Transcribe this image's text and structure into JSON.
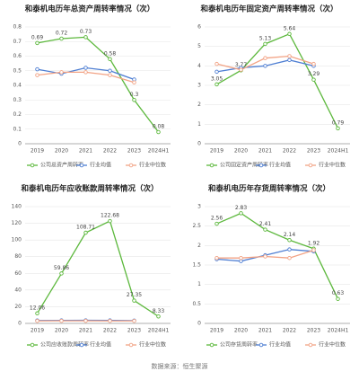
{
  "chart_data": [
    {
      "type": "line",
      "title": "和泰机电历年总资产周转率情况（次）",
      "x": [
        "2019",
        "2020",
        "2021",
        "2022",
        "2023",
        "2024H1"
      ],
      "ylim": [
        0,
        0.8
      ],
      "yticks": [
        0,
        0.1,
        0.2,
        0.3,
        0.4,
        0.5,
        0.6,
        0.7,
        0.8
      ],
      "grid": true,
      "legend": "bottom",
      "series": [
        {
          "name": "公司总资产周转率",
          "color": "#5cb83c",
          "values": [
            0.69,
            0.72,
            0.73,
            0.58,
            0.3,
            0.08
          ],
          "labels": true
        },
        {
          "name": "行业均值",
          "color": "#4f7fd3",
          "values": [
            0.51,
            0.48,
            0.52,
            0.5,
            0.44,
            null
          ]
        },
        {
          "name": "行业中位数",
          "color": "#f2a385",
          "values": [
            0.47,
            0.49,
            0.49,
            0.47,
            0.42,
            null
          ]
        }
      ]
    },
    {
      "type": "line",
      "title": "和泰机电历年固定资产周转率情况（次）",
      "x": [
        "2019",
        "2020",
        "2021",
        "2022",
        "2023",
        "2024H1"
      ],
      "ylim": [
        0,
        6
      ],
      "yticks": [
        0,
        1,
        2,
        3,
        4,
        5,
        6
      ],
      "grid": true,
      "legend": "bottom",
      "series": [
        {
          "name": "公司固定资产周转率",
          "color": "#5cb83c",
          "values": [
            3.05,
            3.77,
            5.13,
            5.64,
            3.29,
            0.79
          ],
          "labels": true
        },
        {
          "name": "行业均值",
          "color": "#4f7fd3",
          "values": [
            3.7,
            3.9,
            4.0,
            4.3,
            4.0,
            null
          ]
        },
        {
          "name": "行业中位数",
          "color": "#f2a385",
          "values": [
            4.1,
            3.8,
            4.4,
            4.5,
            4.1,
            null
          ]
        }
      ]
    },
    {
      "type": "line",
      "title": "和泰机电历年应收账款周转率情况（次）",
      "x": [
        "2019",
        "2020",
        "2021",
        "2022",
        "2023",
        "2024H1"
      ],
      "ylim": [
        0,
        140
      ],
      "yticks": [
        0,
        20,
        40,
        60,
        80,
        100,
        120,
        140
      ],
      "grid": true,
      "legend": "bottom",
      "series": [
        {
          "name": "公司应收账款周转率",
          "color": "#5cb83c",
          "values": [
            12.06,
            59.86,
            108.71,
            122.68,
            27.35,
            8.33
          ],
          "labels": true
        },
        {
          "name": "行业均值",
          "color": "#4f7fd3",
          "values": [
            3.5,
            3.6,
            3.7,
            3.6,
            3.4,
            null
          ]
        },
        {
          "name": "行业中位数",
          "color": "#f2a385",
          "values": [
            3.0,
            3.1,
            3.1,
            3.0,
            3.0,
            null
          ]
        }
      ]
    },
    {
      "type": "line",
      "title": "和泰机电历年存货周转率情况（次）",
      "x": [
        "2019",
        "2020",
        "2021",
        "2022",
        "2023",
        "2024H1"
      ],
      "ylim": [
        0,
        3
      ],
      "yticks": [
        0,
        0.5,
        1,
        1.5,
        2,
        2.5,
        3
      ],
      "grid": true,
      "legend": "bottom",
      "series": [
        {
          "name": "公司存货周转率",
          "color": "#5cb83c",
          "values": [
            2.56,
            2.83,
            2.41,
            2.14,
            1.92,
            0.63
          ],
          "labels": true
        },
        {
          "name": "行业均值",
          "color": "#4f7fd3",
          "values": [
            1.65,
            1.6,
            1.75,
            1.9,
            1.85,
            null
          ]
        },
        {
          "name": "行业中位数",
          "color": "#f2a385",
          "values": [
            1.68,
            1.68,
            1.72,
            1.68,
            1.88,
            null
          ]
        }
      ]
    }
  ],
  "source": "数据来源：恒生聚源"
}
